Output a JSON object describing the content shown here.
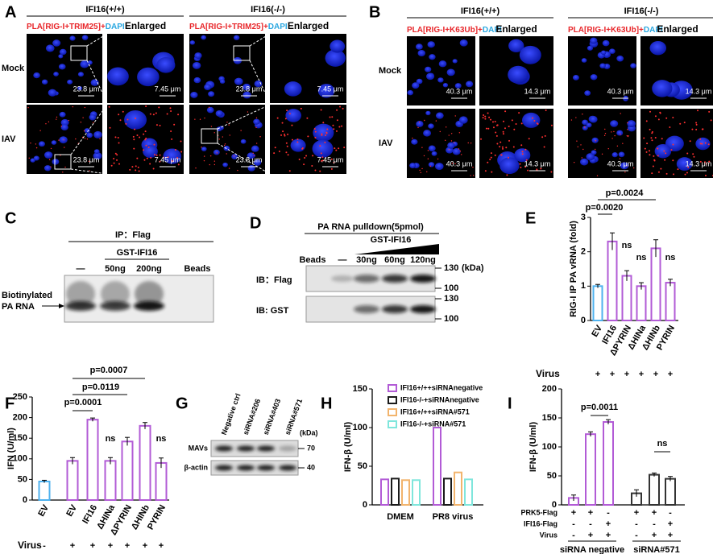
{
  "panel_letters": [
    "A",
    "B",
    "C",
    "D",
    "E",
    "F",
    "G",
    "H",
    "I"
  ],
  "panel_a": {
    "genotypes": [
      "IFI16(+/+)",
      "IFI16(-/-)"
    ],
    "stain": "PLA[RIG-I+TRIM25]+",
    "dapi": "DAPI",
    "enlarged": "Enlarged",
    "rows": [
      "Mock",
      "IAV"
    ],
    "scale_bars": [
      "23.8 μm",
      "7.45 μm"
    ]
  },
  "panel_b": {
    "genotypes": [
      "IFI16(+/+)",
      "IFI16(-/-)"
    ],
    "stain": "PLA[RIG-I+K63Ub]+",
    "dapi": "DAPI",
    "enlarged": "Enlarged",
    "rows": [
      "Mock",
      "IAV"
    ],
    "scale_bars": [
      "40.3 μm",
      "14.3 μm"
    ]
  },
  "panel_c": {
    "ip": "IP：Flag",
    "protein": "GST-IFI16",
    "lanes": [
      "—",
      "50ng",
      "200ng",
      "Beads"
    ],
    "band_label": [
      "Biotinylated",
      "PA RNA"
    ]
  },
  "panel_d": {
    "title": "PA RNA pulldown(5pmol)",
    "protein": "GST-IFI16",
    "lanes": [
      "Beads",
      "—",
      "30ng",
      "60ng",
      "120ng"
    ],
    "blots": [
      "IB：Flag",
      "IB: GST"
    ],
    "markers": [
      "130",
      "100"
    ],
    "unit": "(kDa)"
  },
  "panel_g": {
    "lanes": [
      "Negative ctrl",
      "siRNA#206",
      "siRNA#403",
      "siRNA#571"
    ],
    "unit": "(kDa)",
    "blots": [
      "MAVs",
      "β-actin"
    ],
    "markers": [
      "70",
      "40"
    ]
  },
  "chart_data": [
    {
      "type": "bar",
      "ylabel": "RIG-I IP PA vRNA (fold)",
      "categories": [
        "EV",
        "IFI16",
        "ΔPYRIN",
        "ΔHINa",
        "ΔHINb",
        "PYRIN"
      ],
      "values": [
        1.0,
        2.3,
        1.3,
        1.0,
        2.1,
        1.1
      ],
      "errors": [
        0.05,
        0.25,
        0.15,
        0.1,
        0.25,
        0.1
      ],
      "colors": [
        "#4fb2ef",
        "#b25bd6",
        "#b25bd6",
        "#b25bd6",
        "#b25bd6",
        "#b25bd6"
      ],
      "hollow": true,
      "ylim": [
        0,
        3
      ],
      "yticks": [
        0,
        1,
        2,
        3
      ],
      "annotations": [
        "p=0.0020",
        "p=0.0024",
        "ns",
        "ns",
        "ns"
      ],
      "conditions": [
        {
          "label": "Virus",
          "signs": [
            "+",
            "+",
            "+",
            "+",
            "+",
            "+"
          ]
        }
      ]
    },
    {
      "type": "bar",
      "ylabel": "IFN (U/ml)",
      "categories": [
        "EV",
        "EV",
        "IFI16",
        "ΔHINa",
        "ΔPYRIN",
        "ΔHINb",
        "PYRIN"
      ],
      "values": [
        45,
        95,
        195,
        95,
        142,
        180,
        90
      ],
      "errors": [
        3,
        8,
        4,
        8,
        10,
        8,
        12
      ],
      "colors": [
        "#4fb2ef",
        "#b25bd6",
        "#b25bd6",
        "#b25bd6",
        "#b25bd6",
        "#b25bd6",
        "#b25bd6"
      ],
      "hollow": true,
      "ylim": [
        0,
        250
      ],
      "yticks": [
        0,
        50,
        100,
        150,
        200,
        250
      ],
      "annotations": [
        "p=0.0007",
        "p=0.0119",
        "p=0.0001",
        "ns",
        "ns"
      ],
      "conditions": [
        {
          "label": "Virus",
          "signs": [
            "-",
            "+",
            "+",
            "+",
            "+",
            "+",
            "+"
          ]
        }
      ]
    },
    {
      "type": "grouped-bar",
      "ylabel": "IFN-β (U/ml)",
      "categories": [
        "DMEM",
        "PR8 virus"
      ],
      "hollow": true,
      "series": [
        {
          "name": "IFI16+/++siRNAnegative",
          "color": "#b25bd6",
          "values": [
            33,
            100
          ]
        },
        {
          "name": "IFI16-/-+siRNAnegative",
          "color": "#1a1a1a",
          "values": [
            34,
            34
          ]
        },
        {
          "name": "IFI16+/++siRNA#571",
          "color": "#f2b46d",
          "values": [
            32,
            42
          ]
        },
        {
          "name": "IFI16-/-+siRNA#571",
          "color": "#7fe6dc",
          "values": [
            32,
            33
          ]
        }
      ],
      "ylim": [
        0,
        150
      ],
      "yticks": [
        0,
        50,
        100,
        150
      ]
    },
    {
      "type": "bar",
      "ylabel": "IFN-β (U/ml)",
      "categories": [
        null,
        null,
        null,
        null,
        null,
        null
      ],
      "values": [
        12,
        122,
        143,
        20,
        52,
        45
      ],
      "errors": [
        5,
        4,
        4,
        6,
        3,
        4
      ],
      "colors": [
        "#b25bd6",
        "#b25bd6",
        "#b25bd6",
        "#333333",
        "#333333",
        "#333333"
      ],
      "hollow": true,
      "ylim": [
        0,
        200
      ],
      "yticks": [
        0,
        50,
        100,
        150,
        200
      ],
      "annotations": [
        "p=0.0011",
        "ns"
      ],
      "conditions": [
        {
          "label": "PRK5-Flag",
          "signs": [
            "+",
            "+",
            "-",
            "+",
            "+",
            "-"
          ]
        },
        {
          "label": "IFI16-Flag",
          "signs": [
            "-",
            "-",
            "+",
            "-",
            "-",
            "+"
          ]
        },
        {
          "label": "Virus",
          "signs": [
            "-",
            "+",
            "+",
            "-",
            "+",
            "+"
          ]
        }
      ],
      "groups": [
        "siRNA negative",
        "siRNA#571"
      ]
    }
  ]
}
